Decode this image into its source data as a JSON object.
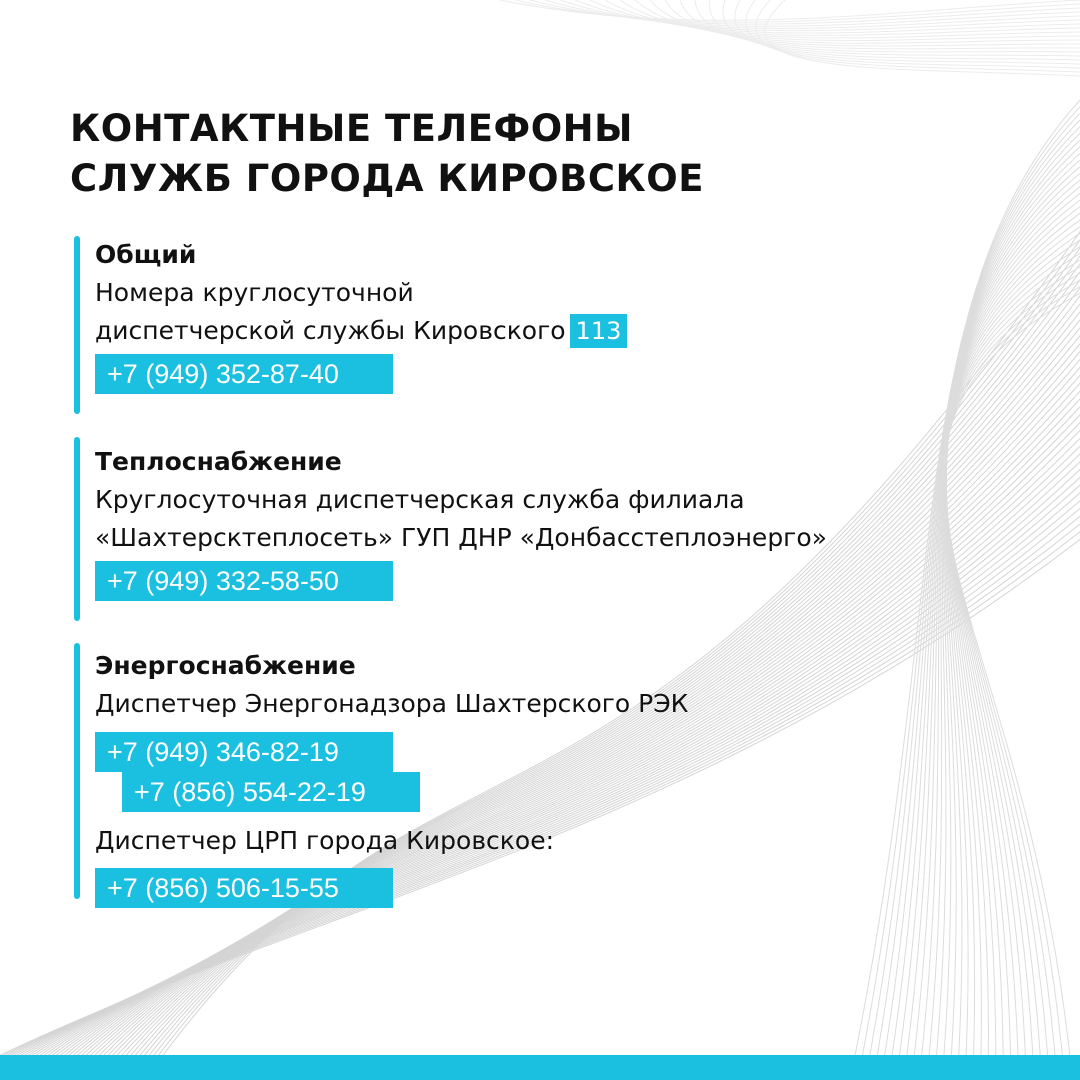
{
  "title": {
    "line1": "КОНТАКТНЫЕ ТЕЛЕФОНЫ",
    "line2": "СЛУЖБ ГОРОДА КИРОВСКОЕ"
  },
  "accent_color": "#1bbfdf",
  "sections": [
    {
      "heading": "Общий",
      "line1": "Номера круглосуточной",
      "line2": "диспетчерской службы Кировского",
      "badge": "113",
      "phones": [
        "+7 (949) 352-87-40"
      ]
    },
    {
      "heading": "Теплоснабжение",
      "line1": "Круглосуточная диспетчерская служба филиала",
      "line2": "«Шахтерсктеплосеть» ГУП ДНР «Донбасстеплоэнерго»",
      "phones": [
        "+7 (949) 332-58-50"
      ]
    },
    {
      "heading": "Энергоснабжение",
      "line1": "Диспетчер Энергонадзора Шахтерского РЭК",
      "phones": [
        "+7 (949) 346-82-19",
        "+7 (856) 554-22-19"
      ],
      "line2": "Диспетчер ЦРП города Кировское:",
      "phones2": [
        "+7 (856) 506-15-55"
      ]
    }
  ]
}
